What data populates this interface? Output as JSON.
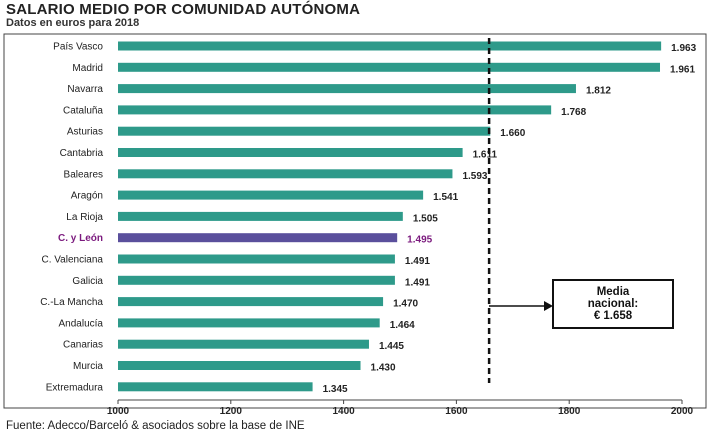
{
  "chart_data": {
    "type": "bar",
    "orientation": "horizontal",
    "title": "SALARIO MEDIO POR COMUNIDAD AUTÓNOMA",
    "subtitle": "Datos en euros para 2018",
    "categories": [
      "País Vasco",
      "Madrid",
      "Navarra",
      "Cataluña",
      "Asturias",
      "Cantabria",
      "Baleares",
      "Aragón",
      "La Rioja",
      "C. y León",
      "C. Valenciana",
      "Galicia",
      "C.-La Mancha",
      "Andalucía",
      "Canarias",
      "Murcia",
      "Extremadura"
    ],
    "values": [
      1963,
      1961,
      1812,
      1768,
      1660,
      1611,
      1593,
      1541,
      1505,
      1495,
      1491,
      1491,
      1470,
      1464,
      1445,
      1430,
      1345
    ],
    "value_labels": [
      "1.963",
      "1.961",
      "1.812",
      "1.768",
      "1.660",
      "1.611",
      "1.593",
      "1.541",
      "1.505",
      "1.495",
      "1.491",
      "1.491",
      "1.470",
      "1.464",
      "1.445",
      "1.430",
      "1.345"
    ],
    "highlight_category": "C. y León",
    "xlim": [
      1000,
      2000
    ],
    "xticks": [
      1000,
      1200,
      1400,
      1600,
      1800,
      2000
    ],
    "reference_line": {
      "value": 1658,
      "style": "dashed"
    },
    "annotation": {
      "lines": [
        "Media",
        "nacional:",
        "€ 1.658"
      ]
    },
    "colors": {
      "bar": "#2e9a8a",
      "highlight_bar": "#5a4f9c",
      "highlight_text": "#7b1a7e"
    }
  },
  "source": "Fuente: Adecco/Barceló & asociados sobre la base de INE"
}
